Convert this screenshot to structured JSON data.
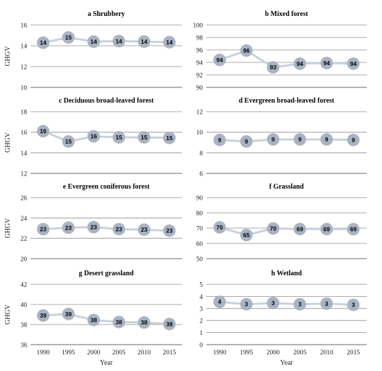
{
  "chart_data": [
    {
      "type": "line",
      "title": "a   Shrubbery",
      "ylabel": "GHGV",
      "xlabel": "",
      "x": [
        1990,
        1995,
        2000,
        2005,
        2010,
        2015
      ],
      "values": [
        14.3,
        14.8,
        14.4,
        14.45,
        14.4,
        14.35
      ],
      "point_labels": [
        "14",
        "15",
        "14",
        "14",
        "14",
        "14"
      ],
      "ylim": [
        10,
        16
      ],
      "yticks": [
        10,
        12,
        14,
        16
      ],
      "grid": true,
      "show_xticks": false
    },
    {
      "type": "line",
      "title": "b   Mixed forest",
      "ylabel": "",
      "xlabel": "",
      "x": [
        1990,
        1995,
        2000,
        2005,
        2010,
        2015
      ],
      "values": [
        94.4,
        95.9,
        93.2,
        93.8,
        93.9,
        93.8
      ],
      "point_labels": [
        "94",
        "96",
        "93",
        "94",
        "94",
        "94"
      ],
      "ylim": [
        90,
        100
      ],
      "yticks": [
        90,
        92,
        94,
        96,
        98,
        100
      ],
      "grid": true,
      "show_xticks": false
    },
    {
      "type": "line",
      "title": "c   Deciduous broad-leaved forest",
      "ylabel": "GHGV",
      "xlabel": "",
      "x": [
        1990,
        1995,
        2000,
        2005,
        2010,
        2015
      ],
      "values": [
        16.1,
        15.1,
        15.6,
        15.5,
        15.5,
        15.45
      ],
      "point_labels": [
        "16",
        "15",
        "16",
        "15",
        "15",
        "15"
      ],
      "ylim": [
        12,
        18
      ],
      "yticks": [
        12,
        14,
        16,
        18
      ],
      "grid": true,
      "show_xticks": false
    },
    {
      "type": "line",
      "title": "d   Evergreen broad-leaved forest",
      "ylabel": "",
      "xlabel": "",
      "x": [
        1990,
        1995,
        2000,
        2005,
        2010,
        2015
      ],
      "values": [
        9.25,
        9.1,
        9.3,
        9.3,
        9.3,
        9.25
      ],
      "point_labels": [
        "9",
        "9",
        "9",
        "9",
        "9",
        "9"
      ],
      "ylim": [
        6,
        12
      ],
      "yticks": [
        6,
        8,
        10,
        12
      ],
      "grid": true,
      "show_xticks": false
    },
    {
      "type": "line",
      "title": "e   Evergreen coniferous forest",
      "ylabel": "GHGV",
      "xlabel": "",
      "x": [
        1990,
        1995,
        2000,
        2005,
        2010,
        2015
      ],
      "values": [
        22.9,
        23.05,
        23.1,
        22.9,
        22.85,
        22.75
      ],
      "point_labels": [
        "23",
        "23",
        "23",
        "23",
        "23",
        "23"
      ],
      "ylim": [
        20,
        26
      ],
      "yticks": [
        20,
        22,
        24,
        26
      ],
      "grid": true,
      "show_xticks": false
    },
    {
      "type": "line",
      "title": "f   Grassland",
      "ylabel": "",
      "xlabel": "",
      "x": [
        1990,
        1995,
        2000,
        2005,
        2010,
        2015
      ],
      "values": [
        70.5,
        65.5,
        69.8,
        69.4,
        69.4,
        69.3
      ],
      "point_labels": [
        "70",
        "65",
        "70",
        "69",
        "69",
        "69"
      ],
      "ylim": [
        50,
        90
      ],
      "yticks": [
        50,
        60,
        70,
        80,
        90
      ],
      "grid": true,
      "show_xticks": false
    },
    {
      "type": "line",
      "title": "g   Desert grassland",
      "ylabel": "GHGV",
      "xlabel": "Year",
      "x": [
        1990,
        1995,
        2000,
        2005,
        2010,
        2015
      ],
      "values": [
        38.9,
        39.05,
        38.45,
        38.25,
        38.2,
        38.05
      ],
      "point_labels": [
        "39",
        "39",
        "38",
        "38",
        "38",
        "38"
      ],
      "ylim": [
        36,
        42
      ],
      "yticks": [
        36,
        38,
        40,
        42
      ],
      "grid": true,
      "show_xticks": true
    },
    {
      "type": "line",
      "title": "h   Wetland",
      "ylabel": "",
      "xlabel": "Year",
      "x": [
        1990,
        1995,
        2000,
        2005,
        2010,
        2015
      ],
      "values": [
        3.55,
        3.35,
        3.45,
        3.35,
        3.4,
        3.3
      ],
      "point_labels": [
        "4",
        "3",
        "3",
        "3",
        "3",
        "3"
      ],
      "ylim": [
        0,
        5
      ],
      "yticks": [
        0,
        1,
        2,
        3,
        4,
        5
      ],
      "grid": true,
      "show_xticks": true
    }
  ],
  "colors": {
    "line": "#c8d1dd",
    "marker": "#a9b3c2",
    "grid": "#8c8c8c",
    "text": "#000000"
  }
}
